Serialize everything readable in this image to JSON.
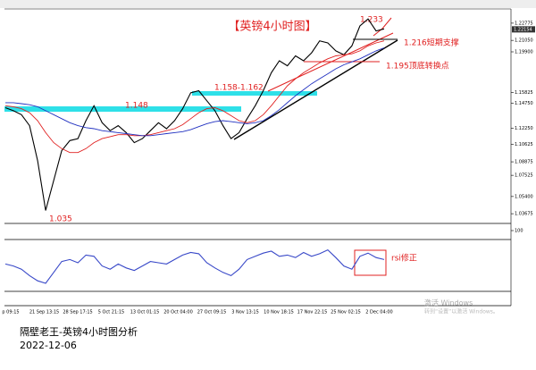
{
  "chart_data": [
    {
      "type": "line",
      "title": "【英镑4小时图】",
      "annotations": [
        "1.233",
        "1.216短期支撑",
        "1.195顶底转换点",
        "1.158-1.162",
        "1.148",
        "1.035"
      ],
      "x_labels": [
        "p 09:15",
        "21 Sep 13:15",
        "28 Sep 17:15",
        "5 Oct 21:15",
        "13 Oct 01:15",
        "20 Oct 04:00",
        "27 Oct 09:15",
        "3 Nov 13:15",
        "10 Nov 18:15",
        "17 Nov 22:15",
        "25 Nov 02:15",
        "2 Dec 04:00"
      ],
      "ylim": [
        1.027,
        1.242
      ],
      "yticks": [
        1.22775,
        {
          "value": 1.2105,
          "label": "1.21050"
        },
        {
          "value": 1.199,
          "label": "1.19900"
        },
        1.15825,
        {
          "value": 1.1475,
          "label": "1.14750"
        },
        {
          "value": 1.1225,
          "label": "1.12250"
        },
        1.10625,
        1.08875,
        1.07525,
        {
          "value": 1.054,
          "label": "1.05400"
        },
        1.03675
      ],
      "current_price": 1.22154,
      "series": [
        {
          "color": "#000000",
          "values": [
            1.143,
            1.14,
            1.136,
            1.125,
            1.09,
            1.04,
            1.07,
            1.1,
            1.11,
            1.112,
            1.13,
            1.145,
            1.128,
            1.12,
            1.125,
            1.118,
            1.108,
            1.112,
            1.12,
            1.128,
            1.122,
            1.13,
            1.142,
            1.158,
            1.16,
            1.15,
            1.14,
            1.125,
            1.112,
            1.118,
            1.132,
            1.145,
            1.16,
            1.178,
            1.19,
            1.185,
            1.195,
            1.19,
            1.198,
            1.21,
            1.208,
            1.2,
            1.196,
            1.205,
            1.225,
            1.232,
            1.22,
            1.222
          ]
        },
        {
          "color": "#e02020",
          "values": [
            1.145,
            1.144,
            1.142,
            1.138,
            1.13,
            1.118,
            1.108,
            1.102,
            1.098,
            1.098,
            1.102,
            1.108,
            1.112,
            1.114,
            1.116,
            1.116,
            1.115,
            1.115,
            1.116,
            1.118,
            1.12,
            1.122,
            1.126,
            1.132,
            1.138,
            1.142,
            1.143,
            1.14,
            1.135,
            1.13,
            1.128,
            1.13,
            1.136,
            1.145,
            1.155,
            1.165,
            1.172,
            1.178,
            1.183,
            1.188,
            1.192,
            1.195,
            1.196,
            1.197,
            1.2,
            1.205,
            1.208,
            1.21
          ]
        },
        {
          "color": "#2030c0",
          "values": [
            1.148,
            1.148,
            1.147,
            1.146,
            1.144,
            1.14,
            1.136,
            1.132,
            1.128,
            1.125,
            1.123,
            1.122,
            1.12,
            1.119,
            1.118,
            1.117,
            1.116,
            1.115,
            1.115,
            1.116,
            1.117,
            1.118,
            1.119,
            1.121,
            1.124,
            1.127,
            1.129,
            1.13,
            1.129,
            1.128,
            1.127,
            1.128,
            1.13,
            1.135,
            1.141,
            1.148,
            1.155,
            1.161,
            1.167,
            1.172,
            1.177,
            1.182,
            1.186,
            1.189,
            1.192,
            1.196,
            1.2,
            1.203
          ]
        }
      ]
    },
    {
      "type": "line",
      "annotations": [
        "rsi修正"
      ],
      "ylim": [
        0,
        100
      ],
      "yticks": [
        100
      ],
      "series": [
        {
          "color": "#3848c8",
          "values": [
            48,
            45,
            40,
            30,
            22,
            18,
            35,
            52,
            55,
            50,
            62,
            60,
            45,
            40,
            48,
            42,
            38,
            45,
            52,
            50,
            48,
            55,
            62,
            66,
            64,
            50,
            42,
            35,
            30,
            40,
            55,
            60,
            65,
            68,
            60,
            62,
            58,
            66,
            60,
            64,
            70,
            58,
            45,
            40,
            60,
            65,
            58,
            55
          ]
        }
      ]
    }
  ],
  "watermark": [
    "激活 Windows",
    "转到“设置”以激活 Windows。"
  ],
  "footer": [
    "隔壁老王-英镑4小时图分析",
    "2022-12-06"
  ]
}
